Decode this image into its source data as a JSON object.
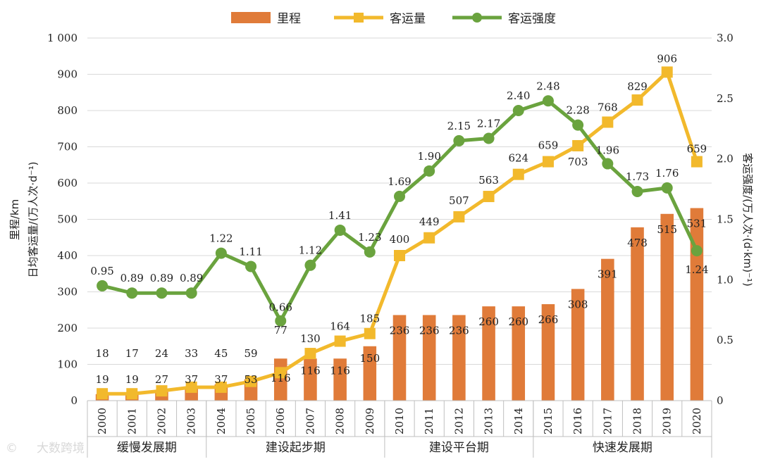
{
  "chart_data": {
    "type": "bar+line",
    "categories": [
      "2000",
      "2001",
      "2002",
      "2003",
      "2004",
      "2005",
      "2006",
      "2007",
      "2008",
      "2009",
      "2010",
      "2011",
      "2012",
      "2013",
      "2014",
      "2015",
      "2016",
      "2017",
      "2018",
      "2019",
      "2020"
    ],
    "series": [
      {
        "name": "里程",
        "type": "bar",
        "axis": "left",
        "color": "#e07b39",
        "values": [
          18,
          17,
          24,
          33,
          45,
          59,
          116,
          116,
          116,
          150,
          236,
          236,
          236,
          260,
          260,
          266,
          308,
          391,
          478,
          515,
          531
        ],
        "labels": [
          "18",
          "17",
          "24",
          "33",
          "45",
          "59",
          "116",
          "116",
          "116",
          "150",
          "236",
          "236",
          "236",
          "260",
          "260",
          "266",
          "308",
          "391",
          "478",
          "515",
          "531"
        ]
      },
      {
        "name": "客运量",
        "type": "line",
        "axis": "left",
        "marker": "square",
        "color": "#f2b92c",
        "values": [
          19,
          19,
          27,
          37,
          37,
          53,
          77,
          130,
          164,
          185,
          400,
          449,
          507,
          563,
          624,
          659,
          703,
          768,
          829,
          906,
          659
        ],
        "labels": [
          "19",
          "19",
          "27",
          "37",
          "37",
          "53",
          "77",
          "130",
          "164",
          "185",
          "400",
          "449",
          "507",
          "563",
          "624",
          "659",
          "703",
          "768",
          "829",
          "906",
          "659"
        ]
      },
      {
        "name": "客运强度",
        "type": "line",
        "axis": "right",
        "marker": "circle",
        "color": "#6aa33e",
        "values": [
          0.95,
          0.89,
          0.89,
          0.89,
          1.22,
          1.11,
          0.66,
          1.12,
          1.41,
          1.23,
          1.69,
          1.9,
          2.15,
          2.17,
          2.4,
          2.48,
          2.28,
          1.96,
          1.73,
          1.76,
          1.24
        ],
        "labels": [
          "0.95",
          "0.89",
          "0.89",
          "0.89",
          "1.22",
          "1.11",
          "0.66",
          "1.12",
          "1.41",
          "1.23",
          "1.69",
          "1.90",
          "2.15",
          "2.17",
          "2.40",
          "2.48",
          "2.28",
          "1.96",
          "1.73",
          "1.76",
          "1.24"
        ]
      }
    ],
    "left_axis": {
      "title_lines": [
        "里程/km",
        "日均客运量/(万人次·d⁻¹)"
      ],
      "ylim": [
        0,
        1000
      ],
      "ticks": [
        0,
        100,
        200,
        300,
        400,
        500,
        600,
        700,
        800,
        900,
        1000
      ],
      "tick_labels": [
        "0",
        "100",
        "200",
        "300",
        "400",
        "500",
        "600",
        "700",
        "800",
        "900",
        "1 000"
      ]
    },
    "right_axis": {
      "title": "客运强度/(万人次·(d·km)⁻¹)",
      "ylim": [
        0,
        3.0
      ],
      "ticks": [
        0,
        0.5,
        1.0,
        1.5,
        2.0,
        2.5,
        3.0
      ],
      "tick_labels": [
        "0",
        "0.5",
        "1.0",
        "1.5",
        "2.0",
        "2.5",
        "3.0"
      ]
    },
    "legend": [
      "里程",
      "客运量",
      "客运强度"
    ],
    "legend_position": "top-center",
    "gridlines": true,
    "periods": [
      {
        "label": "缓慢发展期",
        "start": 0,
        "end": 3
      },
      {
        "label": "建设起步期",
        "start": 4,
        "end": 9
      },
      {
        "label": "建设平台期",
        "start": 10,
        "end": 14
      },
      {
        "label": "快速发展期",
        "start": 15,
        "end": 20
      }
    ]
  },
  "watermark": "大数跨境"
}
